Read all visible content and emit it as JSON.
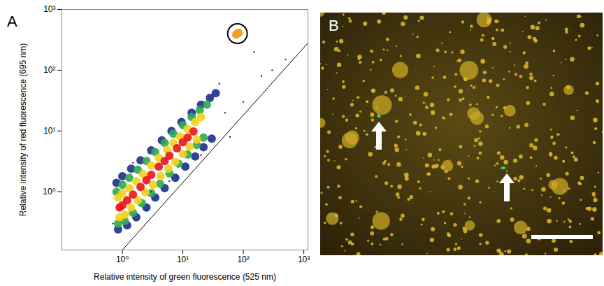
{
  "chart_data": {
    "type": "scatter",
    "panel": "A",
    "x_label": "Relative intensity of green fluorescence (525 nm)",
    "y_label": "Relative intensity of red fluorescence (695 nm)",
    "log": true,
    "grid": false,
    "xlim": [
      0.1,
      1170
    ],
    "ylim": [
      0.11,
      1000
    ],
    "xticks": [
      {
        "value": 1,
        "label": "10⁰"
      },
      {
        "value": 10,
        "label": "10¹"
      },
      {
        "value": 100,
        "label": "10²"
      },
      {
        "value": 1000,
        "label": "10³"
      }
    ],
    "yticks": [
      {
        "value": 1,
        "label": "10⁰"
      },
      {
        "value": 10,
        "label": "10¹"
      },
      {
        "value": 100,
        "label": "10²"
      },
      {
        "value": 1000,
        "label": "10³"
      }
    ],
    "series": [
      {
        "color": "#1c2f8a",
        "marker": "circle",
        "x": [
          0.8,
          1,
          1.4,
          2,
          3,
          4.5,
          6.5,
          9.5,
          14,
          20,
          28,
          35,
          0.85,
          1.2,
          1.7,
          2.5,
          3.5,
          5,
          7.5,
          11,
          16,
          22,
          30
        ],
        "values": [
          1.4,
          1.8,
          2.4,
          3.3,
          4.8,
          7,
          10,
          14,
          20,
          27,
          35,
          42,
          0.24,
          0.28,
          0.38,
          0.55,
          0.8,
          1.15,
          1.7,
          2.6,
          3.8,
          5.4,
          7.5
        ]
      },
      {
        "color": "#2fa84f",
        "marker": "circle",
        "x": [
          0.8,
          1,
          1.3,
          1.8,
          2.5,
          3.5,
          5,
          7,
          10,
          14,
          19,
          25,
          0.85,
          1.1,
          1.5,
          2.1,
          3,
          4.2,
          6,
          8.5,
          12,
          17,
          22
        ],
        "values": [
          1.0,
          1.3,
          1.7,
          2.3,
          3.2,
          4.5,
          6.4,
          9,
          12.5,
          17,
          22,
          27,
          0.3,
          0.33,
          0.45,
          0.65,
          0.95,
          1.35,
          2,
          2.9,
          4.1,
          5.9,
          7.8
        ]
      },
      {
        "color": "#f2d21b",
        "marker": "circle",
        "x": [
          0.85,
          1,
          1.3,
          1.7,
          2.2,
          3,
          4,
          5.5,
          7,
          9,
          12,
          16,
          20,
          0.9,
          1.1,
          1.4,
          1.8,
          2.4,
          3.2,
          4.3,
          5.8,
          7.5,
          10,
          13,
          17
        ],
        "values": [
          0.8,
          0.95,
          1.15,
          1.5,
          1.95,
          2.7,
          3.6,
          4.9,
          6.3,
          8.1,
          10.8,
          14,
          17,
          0.38,
          0.42,
          0.55,
          0.72,
          0.98,
          1.3,
          1.8,
          2.4,
          3.1,
          4.2,
          5.5,
          7.2
        ]
      },
      {
        "color": "#e8141a",
        "marker": "circle",
        "x": [
          0.9,
          1,
          1.2,
          1.5,
          2,
          2.5,
          3,
          4,
          5,
          6,
          8,
          10,
          12,
          15
        ],
        "values": [
          0.55,
          0.6,
          0.72,
          0.9,
          1.2,
          1.55,
          1.9,
          2.6,
          3.2,
          3.9,
          5.2,
          6.5,
          7.8,
          9.8
        ]
      },
      {
        "color": "#1c2f8a",
        "marker": "point",
        "x": [
          3,
          6,
          20,
          50,
          100,
          200,
          40,
          0.7,
          1.5,
          300,
          8,
          150,
          60,
          2.5,
          500
        ],
        "values": [
          1.0,
          1.5,
          4,
          20,
          30,
          80,
          60,
          0.3,
          3,
          100,
          1.8,
          200,
          8,
          0.5,
          150
        ]
      },
      {
        "color": "#f2a020",
        "marker": "circle",
        "x": [
          76,
          80,
          84
        ],
        "values": [
          385,
          400,
          415
        ]
      },
      {
        "type": "line",
        "color": "#000000",
        "x": [
          1,
          1170
        ],
        "values": [
          0.11,
          280
        ]
      }
    ],
    "highlight": {
      "x": 80,
      "y": 400
    }
  },
  "micrograph": {
    "panel": "B",
    "arrows": 2,
    "scale_bar": true
  }
}
